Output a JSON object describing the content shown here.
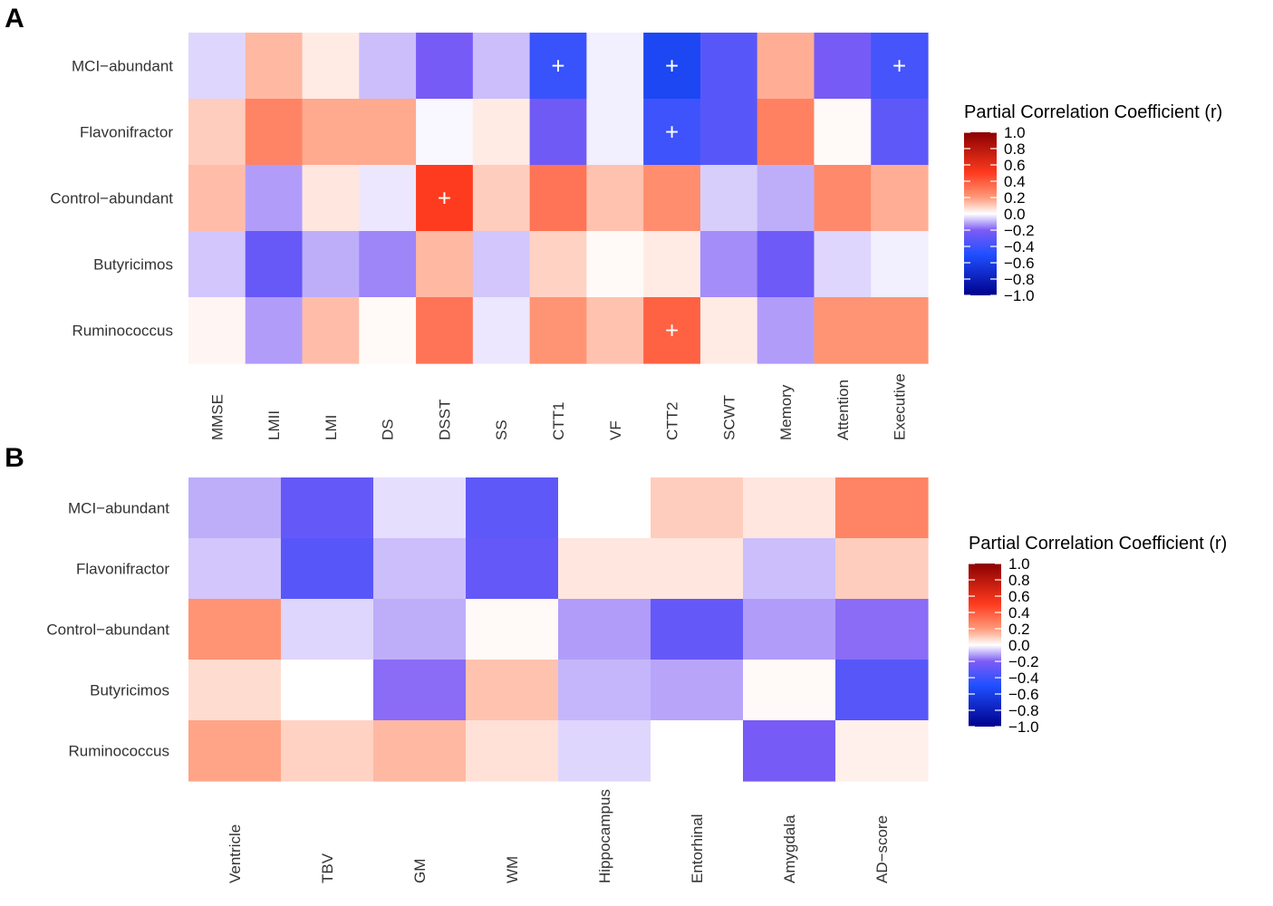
{
  "chart_data": [
    {
      "type": "heatmap",
      "panel_label": "A",
      "rows": [
        "MCI−abundant",
        "Flavonifractor",
        "Control−abundant",
        "Butyricimos",
        "Ruminococcus"
      ],
      "columns": [
        "MMSE",
        "LMII",
        "LMI",
        "DS",
        "DSST",
        "SS",
        "CTT1",
        "VF",
        "CTT2",
        "SCWT",
        "Memory",
        "Attention",
        "Executive"
      ],
      "values": [
        [
          -0.05,
          0.14,
          0.04,
          -0.08,
          -0.22,
          -0.08,
          -0.42,
          -0.02,
          -0.55,
          -0.32,
          0.16,
          -0.22,
          -0.38
        ],
        [
          0.1,
          0.27,
          0.17,
          0.17,
          -0.01,
          0.04,
          -0.24,
          -0.02,
          -0.4,
          -0.32,
          0.28,
          0.01,
          -0.3
        ],
        [
          0.13,
          -0.12,
          0.05,
          -0.03,
          0.5,
          0.1,
          0.32,
          0.12,
          0.24,
          -0.06,
          -0.1,
          0.25,
          0.16
        ],
        [
          -0.07,
          -0.27,
          -0.1,
          -0.15,
          0.14,
          -0.07,
          0.09,
          0.01,
          0.04,
          -0.14,
          -0.25,
          -0.05,
          -0.02
        ],
        [
          0.02,
          -0.12,
          0.13,
          0.01,
          0.32,
          -0.03,
          0.22,
          0.12,
          0.38,
          0.04,
          -0.12,
          0.22,
          0.22
        ]
      ],
      "significant": [
        [
          false,
          false,
          false,
          false,
          false,
          false,
          true,
          false,
          true,
          false,
          false,
          false,
          true
        ],
        [
          false,
          false,
          false,
          false,
          false,
          false,
          false,
          false,
          true,
          false,
          false,
          false,
          false
        ],
        [
          false,
          false,
          false,
          false,
          true,
          false,
          false,
          false,
          false,
          false,
          false,
          false,
          false
        ],
        [
          false,
          false,
          false,
          false,
          false,
          false,
          false,
          false,
          false,
          false,
          false,
          false,
          false
        ],
        [
          false,
          false,
          false,
          false,
          false,
          false,
          false,
          false,
          true,
          false,
          false,
          false,
          false
        ]
      ],
      "marker_symbol": "+",
      "legend": {
        "title": "Partial Correlation Coefficient (r)",
        "ticks": [
          "1.0",
          "0.8",
          "0.6",
          "0.4",
          "0.2",
          "0.0",
          "−0.2",
          "−0.4",
          "−0.6",
          "−0.8",
          "−1.0"
        ],
        "range": [
          -1.0,
          1.0
        ]
      }
    },
    {
      "type": "heatmap",
      "panel_label": "B",
      "rows": [
        "MCI−abundant",
        "Flavonifractor",
        "Control−abundant",
        "Butyricimos",
        "Ruminococcus"
      ],
      "columns": [
        "Ventricle",
        "TBV",
        "GM",
        "WM",
        "Hippocampus",
        "Entorhinal",
        "Amygdala",
        "AD−score"
      ],
      "values": [
        [
          -0.1,
          -0.28,
          -0.04,
          -0.3,
          0.0,
          0.1,
          0.05,
          0.27
        ],
        [
          -0.07,
          -0.32,
          -0.08,
          -0.28,
          0.05,
          0.05,
          -0.08,
          0.1
        ],
        [
          0.22,
          -0.05,
          -0.1,
          0.01,
          -0.12,
          -0.28,
          -0.12,
          -0.18
        ],
        [
          0.07,
          0.0,
          -0.18,
          0.12,
          -0.09,
          -0.11,
          0.01,
          -0.32
        ],
        [
          0.18,
          0.09,
          0.14,
          0.06,
          -0.05,
          0.0,
          -0.22,
          0.03
        ]
      ],
      "legend": {
        "title": "Partial Correlation Coefficient (r)",
        "ticks": [
          "1.0",
          "0.8",
          "0.6",
          "0.4",
          "0.2",
          "0.0",
          "−0.2",
          "−0.4",
          "−0.6",
          "−0.8",
          "−1.0"
        ],
        "range": [
          -1.0,
          1.0
        ]
      }
    }
  ]
}
